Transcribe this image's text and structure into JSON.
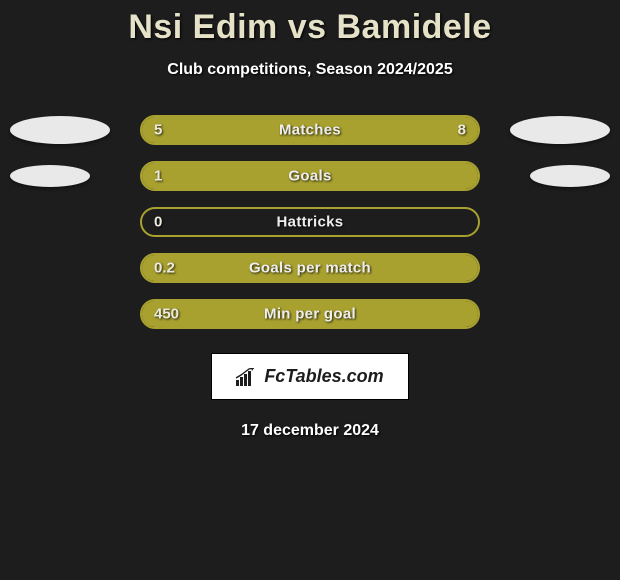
{
  "title": "Nsi Edim vs Bamidele",
  "subtitle": "Club competitions, Season 2024/2025",
  "title_color": "#e5e2c8",
  "background_color": "#1d1d1d",
  "ellipse_color": "#e9e9e9",
  "bar_border_color": "#a9a12f",
  "bar_fill_color": "#a9a12f",
  "brand_text": "FcTables.com",
  "date": "17 december 2024",
  "stats": [
    {
      "label": "Matches",
      "left_value": "5",
      "right_value": "8",
      "left_pct": 38,
      "right_pct": 62,
      "show_ellipses": true,
      "show_right_value": true,
      "ellipse_left_w": 100,
      "ellipse_left_h": 28,
      "ellipse_right_w": 100,
      "ellipse_right_h": 28
    },
    {
      "label": "Goals",
      "left_value": "1",
      "right_value": "",
      "left_pct": 100,
      "right_pct": 0,
      "show_ellipses": true,
      "show_right_value": false,
      "ellipse_left_w": 80,
      "ellipse_left_h": 22,
      "ellipse_right_w": 80,
      "ellipse_right_h": 22
    },
    {
      "label": "Hattricks",
      "left_value": "0",
      "right_value": "",
      "left_pct": 0,
      "right_pct": 0,
      "show_ellipses": false,
      "show_right_value": false
    },
    {
      "label": "Goals per match",
      "left_value": "0.2",
      "right_value": "",
      "left_pct": 100,
      "right_pct": 0,
      "show_ellipses": false,
      "show_right_value": false
    },
    {
      "label": "Min per goal",
      "left_value": "450",
      "right_value": "",
      "left_pct": 100,
      "right_pct": 0,
      "show_ellipses": false,
      "show_right_value": false
    }
  ]
}
